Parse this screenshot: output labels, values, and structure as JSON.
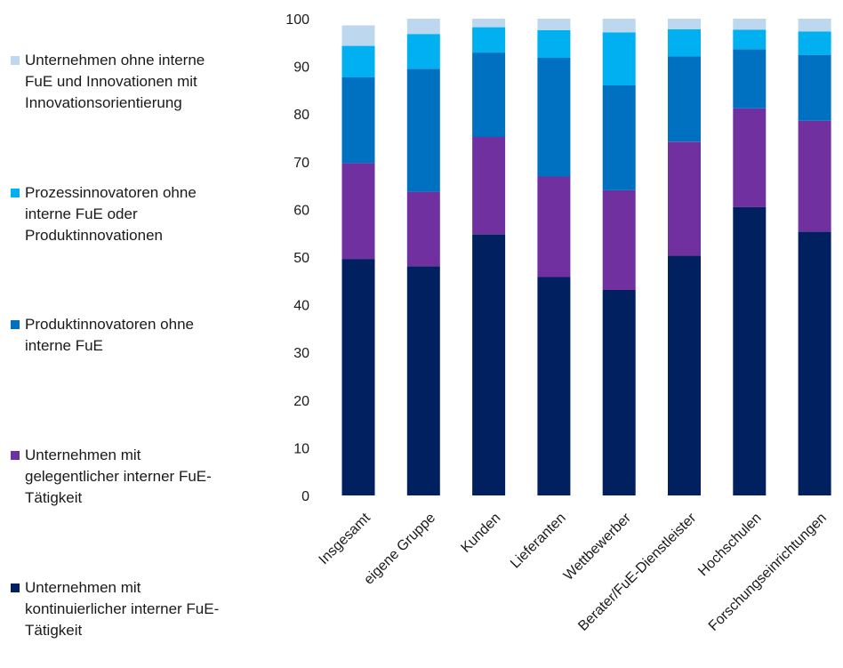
{
  "chart_data": {
    "type": "bar",
    "stacked": true,
    "categories": [
      "Insgesamt",
      "eigene Gruppe",
      "Kunden",
      "Lieferanten",
      "Wettbewerber",
      "Berater/FuE-Dienstleister",
      "Hochschulen",
      "Forschungseinrichtungen"
    ],
    "series": [
      {
        "name": "Unternehmen mit\nkontinuierlicher interner FuE-\nTätigkeit",
        "color": "#002060",
        "values": [
          49.6,
          48.1,
          54.8,
          45.8,
          43.1,
          50.3,
          60.5,
          55.3
        ]
      },
      {
        "name": "Unternehmen mit\ngelegentlicher interner FuE-\nTätigkeit",
        "color": "#7030a0",
        "values": [
          20.1,
          15.6,
          20.4,
          21.1,
          20.9,
          23.9,
          20.7,
          23.3
        ]
      },
      {
        "name": "Produktinnovatoren ohne\ninterne FuE",
        "color": "#0070c0",
        "values": [
          18.0,
          25.8,
          17.7,
          24.9,
          22.0,
          17.9,
          12.4,
          13.8
        ]
      },
      {
        "name": "Prozessinnovatoren ohne\ninterne FuE oder\nProduktinnovationen",
        "color": "#00b0f0",
        "values": [
          6.6,
          7.3,
          5.3,
          5.8,
          11.1,
          5.7,
          4.1,
          4.9
        ]
      },
      {
        "name": "Unternehmen ohne interne\nFuE und Innovationen mit\nInnovationsorientierung",
        "color": "#bdd7ee",
        "values": [
          4.3,
          3.2,
          1.8,
          2.4,
          2.9,
          2.2,
          2.3,
          2.7
        ]
      }
    ],
    "ylim": [
      0,
      100
    ],
    "yticks": [
      0,
      10,
      20,
      30,
      40,
      50,
      60,
      70,
      80,
      90,
      100
    ],
    "ytick_labels": [
      "0",
      "10",
      "20",
      "30",
      "40",
      "50",
      "60",
      "70",
      "80",
      "90",
      "100"
    ],
    "grid": false,
    "legend_position": "left",
    "legend_order": [
      4,
      3,
      2,
      1,
      0
    ]
  }
}
